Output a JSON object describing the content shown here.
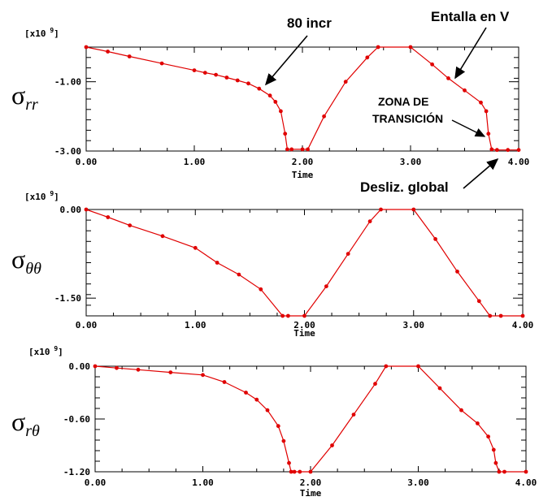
{
  "chart_data": [
    {
      "type": "line",
      "scale_label": "[x10",
      "scale_exp": "9",
      "scale_close": "]",
      "ylabel_main": "σ",
      "ylabel_sub": "rr",
      "xlabel": "Time",
      "xlim": [
        0,
        4
      ],
      "ylim": [
        -3,
        0
      ],
      "xticks": [
        "0.00",
        "1.00",
        "2.00",
        "3.00",
        "4.00"
      ],
      "yticks": [
        {
          "value": -1,
          "label": "-1.00"
        },
        {
          "value": -3,
          "label": "-3.00"
        }
      ],
      "color": "#e00000",
      "series": [
        {
          "x": [
            0.0,
            0.2,
            0.4,
            0.7,
            1.0,
            1.1,
            1.2,
            1.3,
            1.4,
            1.5,
            1.6,
            1.7,
            1.75,
            1.8,
            1.84,
            1.86,
            1.9,
            2.0,
            2.05,
            2.2,
            2.4,
            2.6,
            2.7,
            3.0,
            3.2,
            3.35,
            3.5,
            3.65,
            3.7,
            3.72,
            3.75,
            3.8,
            3.9,
            4.0
          ],
          "y": [
            0.0,
            -0.13,
            -0.27,
            -0.47,
            -0.67,
            -0.74,
            -0.8,
            -0.88,
            -0.96,
            -1.05,
            -1.2,
            -1.4,
            -1.58,
            -1.85,
            -2.5,
            -2.95,
            -2.95,
            -2.95,
            -2.95,
            -2.0,
            -1.0,
            -0.3,
            0.0,
            0.0,
            -0.5,
            -0.9,
            -1.25,
            -1.6,
            -1.85,
            -2.5,
            -2.95,
            -2.97,
            -2.97,
            -2.97
          ]
        }
      ],
      "annotations": [
        {
          "text": "80 incr"
        },
        {
          "text": "Entalla en V"
        },
        {
          "text": "ZONA DE",
          "text2": "TRANSICIÓN"
        },
        {
          "text": "Desliz. global"
        }
      ]
    },
    {
      "type": "line",
      "scale_label": "[x10",
      "scale_exp": "9",
      "scale_close": "]",
      "ylabel_main": "σ",
      "ylabel_sub": "θθ",
      "xlabel": "Time",
      "xlim": [
        0,
        4
      ],
      "ylim": [
        -1.8,
        0
      ],
      "xticks": [
        "0.00",
        "1.00",
        "2.00",
        "3.00",
        "4.00"
      ],
      "yticks": [
        {
          "value": 0,
          "label": "0.00"
        },
        {
          "value": -1.5,
          "label": "-1.50"
        }
      ],
      "color": "#e00000",
      "series": [
        {
          "x": [
            0.0,
            0.2,
            0.4,
            0.7,
            1.0,
            1.2,
            1.4,
            1.6,
            1.8,
            1.85,
            2.0,
            2.2,
            2.4,
            2.6,
            2.7,
            3.0,
            3.2,
            3.4,
            3.6,
            3.7,
            3.8,
            4.0
          ],
          "y": [
            0.0,
            -0.13,
            -0.27,
            -0.45,
            -0.65,
            -0.9,
            -1.1,
            -1.35,
            -1.8,
            -1.8,
            -1.8,
            -1.3,
            -0.75,
            -0.2,
            0.0,
            0.0,
            -0.5,
            -1.05,
            -1.55,
            -1.8,
            -1.8,
            -1.8
          ]
        }
      ]
    },
    {
      "type": "line",
      "scale_label": "[x10",
      "scale_exp": "9",
      "scale_close": "]",
      "ylabel_main": "σ",
      "ylabel_sub": "rθ",
      "xlabel": "Time",
      "xlim": [
        0,
        4
      ],
      "ylim": [
        -1.2,
        0
      ],
      "xticks": [
        "0.00",
        "1.00",
        "2.00",
        "3.00",
        "4.00"
      ],
      "yticks": [
        {
          "value": 0,
          "label": "0.00"
        },
        {
          "value": -0.6,
          "label": "-0.60"
        },
        {
          "value": -1.2,
          "label": "-1.20"
        }
      ],
      "color": "#e00000",
      "series": [
        {
          "x": [
            0.0,
            0.2,
            0.4,
            0.7,
            1.0,
            1.2,
            1.4,
            1.5,
            1.6,
            1.7,
            1.75,
            1.8,
            1.82,
            1.85,
            1.9,
            2.0,
            2.2,
            2.4,
            2.6,
            2.7,
            3.0,
            3.2,
            3.4,
            3.55,
            3.65,
            3.7,
            3.72,
            3.75,
            3.8,
            4.0
          ],
          "y": [
            0.0,
            -0.02,
            -0.04,
            -0.07,
            -0.1,
            -0.18,
            -0.3,
            -0.38,
            -0.5,
            -0.68,
            -0.85,
            -1.1,
            -1.2,
            -1.2,
            -1.2,
            -1.2,
            -0.9,
            -0.55,
            -0.2,
            0.0,
            0.0,
            -0.25,
            -0.5,
            -0.65,
            -0.8,
            -0.95,
            -1.1,
            -1.2,
            -1.2,
            -1.2
          ]
        }
      ]
    }
  ]
}
